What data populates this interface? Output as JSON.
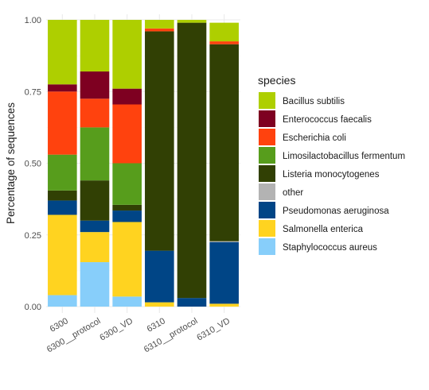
{
  "chart_data": {
    "type": "bar",
    "stacked": true,
    "ylabel": "Percentage of sequences",
    "xlabel": "",
    "ylim": [
      0,
      1
    ],
    "yticks": [
      "0.00",
      "0.25",
      "0.50",
      "0.75",
      "1.00"
    ],
    "grid": true,
    "legend": {
      "title": "species",
      "placement": "right"
    },
    "categories": [
      "6300",
      "6300__protocol",
      "6300_VD",
      "6310",
      "6310__protocol",
      "6310_VD"
    ],
    "series": [
      {
        "name": "Staphylococcus aureus",
        "color": "#87CEFA",
        "values": [
          0.04,
          0.155,
          0.035,
          0.0,
          0.0,
          0.0
        ]
      },
      {
        "name": "Salmonella enterica",
        "color": "#FFD320",
        "values": [
          0.28,
          0.105,
          0.26,
          0.015,
          0.0,
          0.01
        ]
      },
      {
        "name": "Pseudomonas aeruginosa",
        "color": "#004586",
        "values": [
          0.05,
          0.04,
          0.04,
          0.18,
          0.03,
          0.215
        ]
      },
      {
        "name": "other",
        "color": "#B3B3B3",
        "values": [
          0.0,
          0.0,
          0.0,
          0.0,
          0.0,
          0.003
        ]
      },
      {
        "name": "Listeria monocytogenes",
        "color": "#314004",
        "values": [
          0.035,
          0.14,
          0.02,
          0.765,
          0.96,
          0.687
        ]
      },
      {
        "name": "Limosilactobacillus fermentum",
        "color": "#579D1C",
        "values": [
          0.125,
          0.185,
          0.145,
          0.0,
          0.0,
          0.0
        ]
      },
      {
        "name": "Escherichia coli",
        "color": "#FF420E",
        "values": [
          0.22,
          0.1,
          0.205,
          0.01,
          0.0,
          0.01
        ]
      },
      {
        "name": "Enterococcus faecalis",
        "color": "#7E0021",
        "values": [
          0.025,
          0.095,
          0.055,
          0.0,
          0.0,
          0.0
        ]
      },
      {
        "name": "Bacillus subtilis",
        "color": "#AECF00",
        "values": [
          0.225,
          0.18,
          0.24,
          0.03,
          0.01,
          0.065
        ]
      }
    ],
    "legend_order": [
      "Bacillus subtilis",
      "Enterococcus faecalis",
      "Escherichia coli",
      "Limosilactobacillus fermentum",
      "Listeria monocytogenes",
      "other",
      "Pseudomonas aeruginosa",
      "Salmonella enterica",
      "Staphylococcus aureus"
    ]
  }
}
